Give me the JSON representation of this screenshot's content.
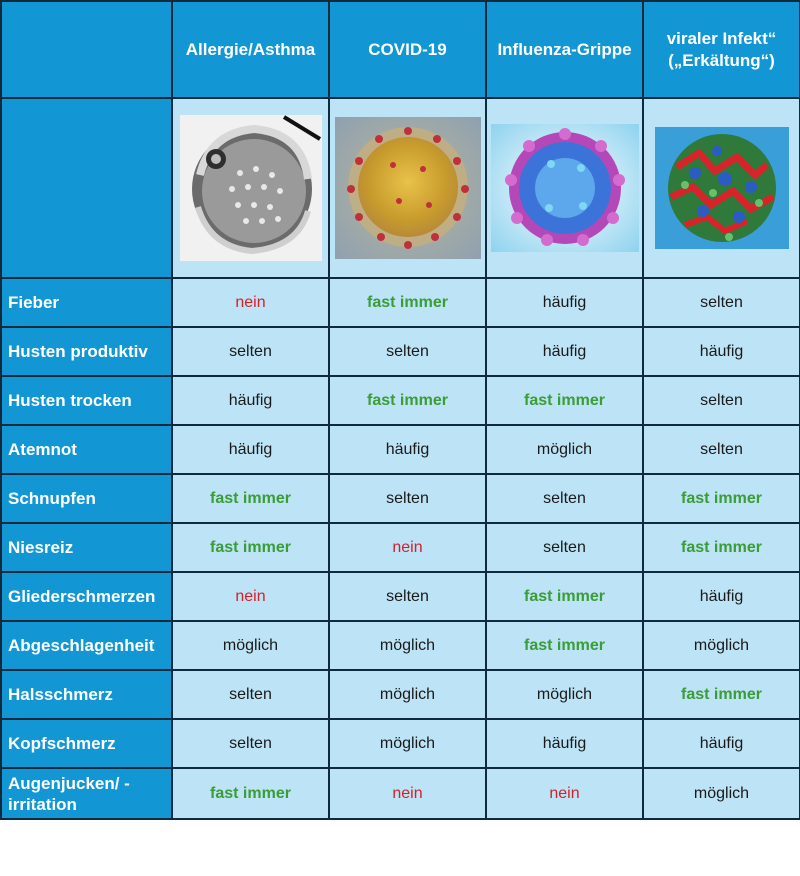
{
  "columns": [
    {
      "label": "Allergie/Asthma",
      "icon": "pollen-grain-image"
    },
    {
      "label": "COVID-19",
      "icon": "coronavirus-image"
    },
    {
      "label": "Influenza-Grippe",
      "icon": "influenza-virus-image"
    },
    {
      "label": "viraler Infekt“ („Erkältung“)",
      "icon": "cold-virus-image"
    }
  ],
  "colors": {
    "header": "#1296d4",
    "cell": "#bde3f6",
    "green": "#3a9d35",
    "red": "#d4202a",
    "border": "#0d2a3e"
  },
  "rows": [
    {
      "symptom": "Fieber",
      "values": [
        {
          "text": "nein",
          "tone": "red"
        },
        {
          "text": "fast immer",
          "tone": "green"
        },
        {
          "text": "häufig",
          "tone": "black"
        },
        {
          "text": "selten",
          "tone": "black"
        }
      ]
    },
    {
      "symptom": "Husten produktiv",
      "values": [
        {
          "text": "selten",
          "tone": "black"
        },
        {
          "text": "selten",
          "tone": "black"
        },
        {
          "text": "häufig",
          "tone": "black"
        },
        {
          "text": "häufig",
          "tone": "black"
        }
      ]
    },
    {
      "symptom": "Husten trocken",
      "values": [
        {
          "text": "häufig",
          "tone": "black"
        },
        {
          "text": "fast immer",
          "tone": "green"
        },
        {
          "text": "fast immer",
          "tone": "green"
        },
        {
          "text": "selten",
          "tone": "black"
        }
      ]
    },
    {
      "symptom": "Atemnot",
      "values": [
        {
          "text": "häufig",
          "tone": "black"
        },
        {
          "text": "häufig",
          "tone": "black"
        },
        {
          "text": "möglich",
          "tone": "black"
        },
        {
          "text": "selten",
          "tone": "black"
        }
      ]
    },
    {
      "symptom": "Schnupfen",
      "values": [
        {
          "text": "fast immer",
          "tone": "green"
        },
        {
          "text": "selten",
          "tone": "black"
        },
        {
          "text": "selten",
          "tone": "black"
        },
        {
          "text": "fast immer",
          "tone": "green"
        }
      ]
    },
    {
      "symptom": "Niesreiz",
      "values": [
        {
          "text": "fast immer",
          "tone": "green"
        },
        {
          "text": "nein",
          "tone": "red"
        },
        {
          "text": "selten",
          "tone": "black"
        },
        {
          "text": "fast immer",
          "tone": "green"
        }
      ]
    },
    {
      "symptom": "Gliederschmerzen",
      "values": [
        {
          "text": "nein",
          "tone": "red"
        },
        {
          "text": "selten",
          "tone": "black"
        },
        {
          "text": "fast immer",
          "tone": "green"
        },
        {
          "text": "häufig",
          "tone": "black"
        }
      ]
    },
    {
      "symptom": "Abgeschlagenheit",
      "values": [
        {
          "text": "möglich",
          "tone": "black"
        },
        {
          "text": "möglich",
          "tone": "black"
        },
        {
          "text": "fast immer",
          "tone": "green"
        },
        {
          "text": "möglich",
          "tone": "black"
        }
      ]
    },
    {
      "symptom": "Halsschmerz",
      "values": [
        {
          "text": "selten",
          "tone": "black"
        },
        {
          "text": "möglich",
          "tone": "black"
        },
        {
          "text": "möglich",
          "tone": "black"
        },
        {
          "text": "fast immer",
          "tone": "green"
        }
      ]
    },
    {
      "symptom": "Kopfschmerz",
      "values": [
        {
          "text": "selten",
          "tone": "black"
        },
        {
          "text": "möglich",
          "tone": "black"
        },
        {
          "text": "häufig",
          "tone": "black"
        },
        {
          "text": "häufig",
          "tone": "black"
        }
      ]
    },
    {
      "symptom": "Augenjucken/ -irritation",
      "values": [
        {
          "text": "fast immer",
          "tone": "green"
        },
        {
          "text": "nein",
          "tone": "red"
        },
        {
          "text": "nein",
          "tone": "red"
        },
        {
          "text": "möglich",
          "tone": "black"
        }
      ]
    }
  ]
}
